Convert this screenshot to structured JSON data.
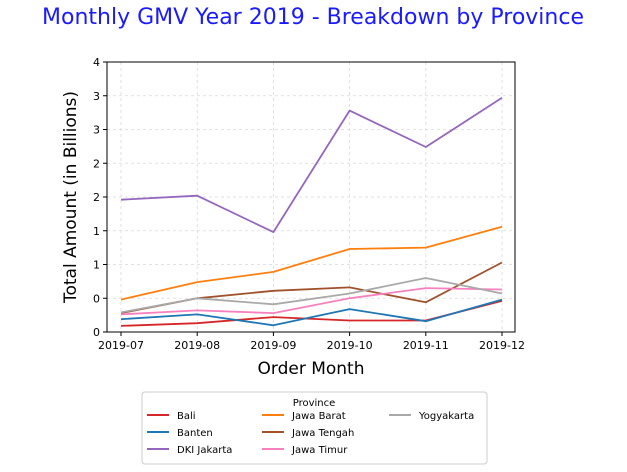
{
  "chart_data": {
    "type": "line",
    "title": "Monthly GMV Year 2019 - Breakdown by Province",
    "title_color": "#1a1aff",
    "xlabel": "Order Month",
    "ylabel": "Total Amount (in Billions)",
    "categories": [
      "2019-07",
      "2019-08",
      "2019-09",
      "2019-10",
      "2019-11",
      "2019-12"
    ],
    "y_tick_labels": [
      "0",
      "0",
      "1",
      "1",
      "2",
      "2",
      "3",
      "3",
      "4"
    ],
    "ylim": [
      0,
      4
    ],
    "grid": true,
    "legend": {
      "title": "Province",
      "placement": "bottom-center",
      "columns": 3
    },
    "series": [
      {
        "name": "Bali",
        "color": "#d62728",
        "values": [
          0.09,
          0.13,
          0.22,
          0.17,
          0.17,
          0.46
        ]
      },
      {
        "name": "Banten",
        "color": "#1f77b4",
        "values": [
          0.19,
          0.26,
          0.1,
          0.34,
          0.16,
          0.48
        ]
      },
      {
        "name": "DKI Jakarta",
        "color": "#9467bd",
        "values": [
          1.96,
          2.02,
          1.48,
          3.28,
          2.74,
          3.47
        ]
      },
      {
        "name": "Jawa Barat",
        "color": "#ff7f0e",
        "values": [
          0.48,
          0.74,
          0.89,
          1.23,
          1.25,
          1.56
        ]
      },
      {
        "name": "Jawa Tengah",
        "color": "#a0522d",
        "values": [
          0.28,
          0.5,
          0.61,
          0.66,
          0.44,
          1.03
        ]
      },
      {
        "name": "Jawa Timur",
        "color": "#f781bf",
        "values": [
          0.26,
          0.32,
          0.28,
          0.5,
          0.65,
          0.63
        ]
      },
      {
        "name": "Yogyakarta",
        "color": "#a9a9a9",
        "values": [
          0.29,
          0.5,
          0.41,
          0.57,
          0.8,
          0.57
        ]
      }
    ]
  }
}
